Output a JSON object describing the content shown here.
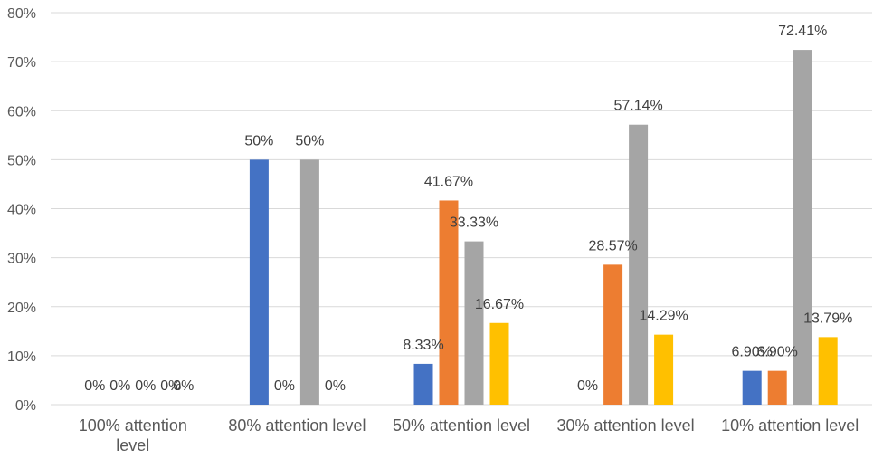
{
  "chart_data": {
    "type": "bar",
    "title": "",
    "xlabel": "",
    "ylabel": "",
    "ylim": [
      0,
      80
    ],
    "yticks": [
      "0%",
      "10%",
      "20%",
      "30%",
      "40%",
      "50%",
      "60%",
      "70%",
      "80%"
    ],
    "grid": true,
    "legend": "none",
    "categories": [
      [
        "100% attention",
        "level"
      ],
      [
        "80% attention level"
      ],
      [
        "50% attention level"
      ],
      [
        "30% attention level"
      ],
      [
        "10% attention level"
      ]
    ],
    "colors": [
      "#4472c4",
      "#ed7d31",
      "#a5a5a5",
      "#ffc000"
    ],
    "series": [
      {
        "values": [
          0,
          50,
          8.33,
          0,
          6.9
        ],
        "labels": [
          "0%",
          "50%",
          "8.33%",
          "0%",
          "6.90%"
        ]
      },
      {
        "values": [
          0,
          0,
          41.67,
          28.57,
          6.9
        ],
        "labels": [
          "0%",
          "0%",
          "41.67%",
          "28.57%",
          "6.90%"
        ]
      },
      {
        "values": [
          0,
          50,
          33.33,
          57.14,
          72.41
        ],
        "labels": [
          "0%",
          "50%",
          "33.33%",
          "57.14%",
          "72.41%"
        ]
      },
      {
        "values": [
          0,
          0,
          16.67,
          14.29,
          13.79
        ],
        "labels": [
          "0%",
          "0%",
          "16.67%",
          "14.29%",
          "13.79%"
        ]
      }
    ],
    "extra_labels": [
      {
        "category": 0,
        "text": "0%"
      }
    ]
  }
}
